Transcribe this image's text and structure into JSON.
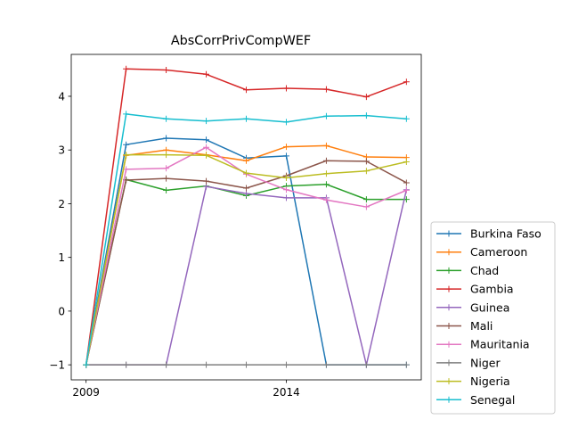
{
  "chart_data": {
    "type": "line",
    "title": "AbsCorrPrivCompWEF",
    "xlabel": "",
    "ylabel": "",
    "xlim": [
      2008.63,
      2017.37
    ],
    "ylim": [
      -1.28,
      4.78
    ],
    "x_ticks": [
      2009,
      2014
    ],
    "x_tick_labels": [
      "2009",
      "2014"
    ],
    "y_ticks": [
      -1,
      0,
      1,
      2,
      3,
      4
    ],
    "y_tick_labels": [
      "−1",
      "0",
      "1",
      "2",
      "3",
      "4"
    ],
    "grid": false,
    "legend_position": "lower-right-outside",
    "x": [
      2009,
      2010,
      2011,
      2012,
      2013,
      2014,
      2015,
      2016,
      2017
    ],
    "series": [
      {
        "name": "Burkina Faso",
        "color": "#1f77b4",
        "values": [
          -1,
          3.1,
          3.22,
          3.19,
          2.85,
          2.89,
          -1,
          -1,
          -1
        ]
      },
      {
        "name": "Cameroon",
        "color": "#ff7f0e",
        "values": [
          -1,
          2.9,
          3.0,
          2.91,
          2.8,
          3.06,
          3.08,
          2.87,
          2.86
        ]
      },
      {
        "name": "Chad",
        "color": "#2ca02c",
        "values": [
          -1,
          2.45,
          2.25,
          2.33,
          2.15,
          2.33,
          2.36,
          2.08,
          2.08
        ]
      },
      {
        "name": "Gambia",
        "color": "#d62728",
        "values": [
          -1,
          4.51,
          4.49,
          4.41,
          4.12,
          4.15,
          4.13,
          3.99,
          4.27
        ]
      },
      {
        "name": "Guinea",
        "color": "#9467bd",
        "values": [
          -1,
          -1,
          -1,
          2.32,
          2.19,
          2.11,
          2.11,
          -1,
          2.26
        ]
      },
      {
        "name": "Mali",
        "color": "#8c564b",
        "values": [
          -1,
          2.44,
          2.47,
          2.42,
          2.29,
          2.52,
          2.8,
          2.79,
          2.39
        ]
      },
      {
        "name": "Mauritania",
        "color": "#e377c2",
        "values": [
          -1,
          2.64,
          2.66,
          3.05,
          2.55,
          2.26,
          2.07,
          1.94,
          2.25
        ]
      },
      {
        "name": "Niger",
        "color": "#7f7f7f",
        "values": [
          -1,
          -1,
          -1,
          -1,
          -1,
          -1,
          -1,
          -1,
          -1
        ]
      },
      {
        "name": "Nigeria",
        "color": "#bcbd22",
        "values": [
          -1,
          2.91,
          2.91,
          2.9,
          2.57,
          2.48,
          2.56,
          2.61,
          2.78
        ]
      },
      {
        "name": "Senegal",
        "color": "#17becf",
        "values": [
          -1,
          3.67,
          3.58,
          3.54,
          3.58,
          3.52,
          3.63,
          3.64,
          3.58
        ]
      }
    ]
  }
}
